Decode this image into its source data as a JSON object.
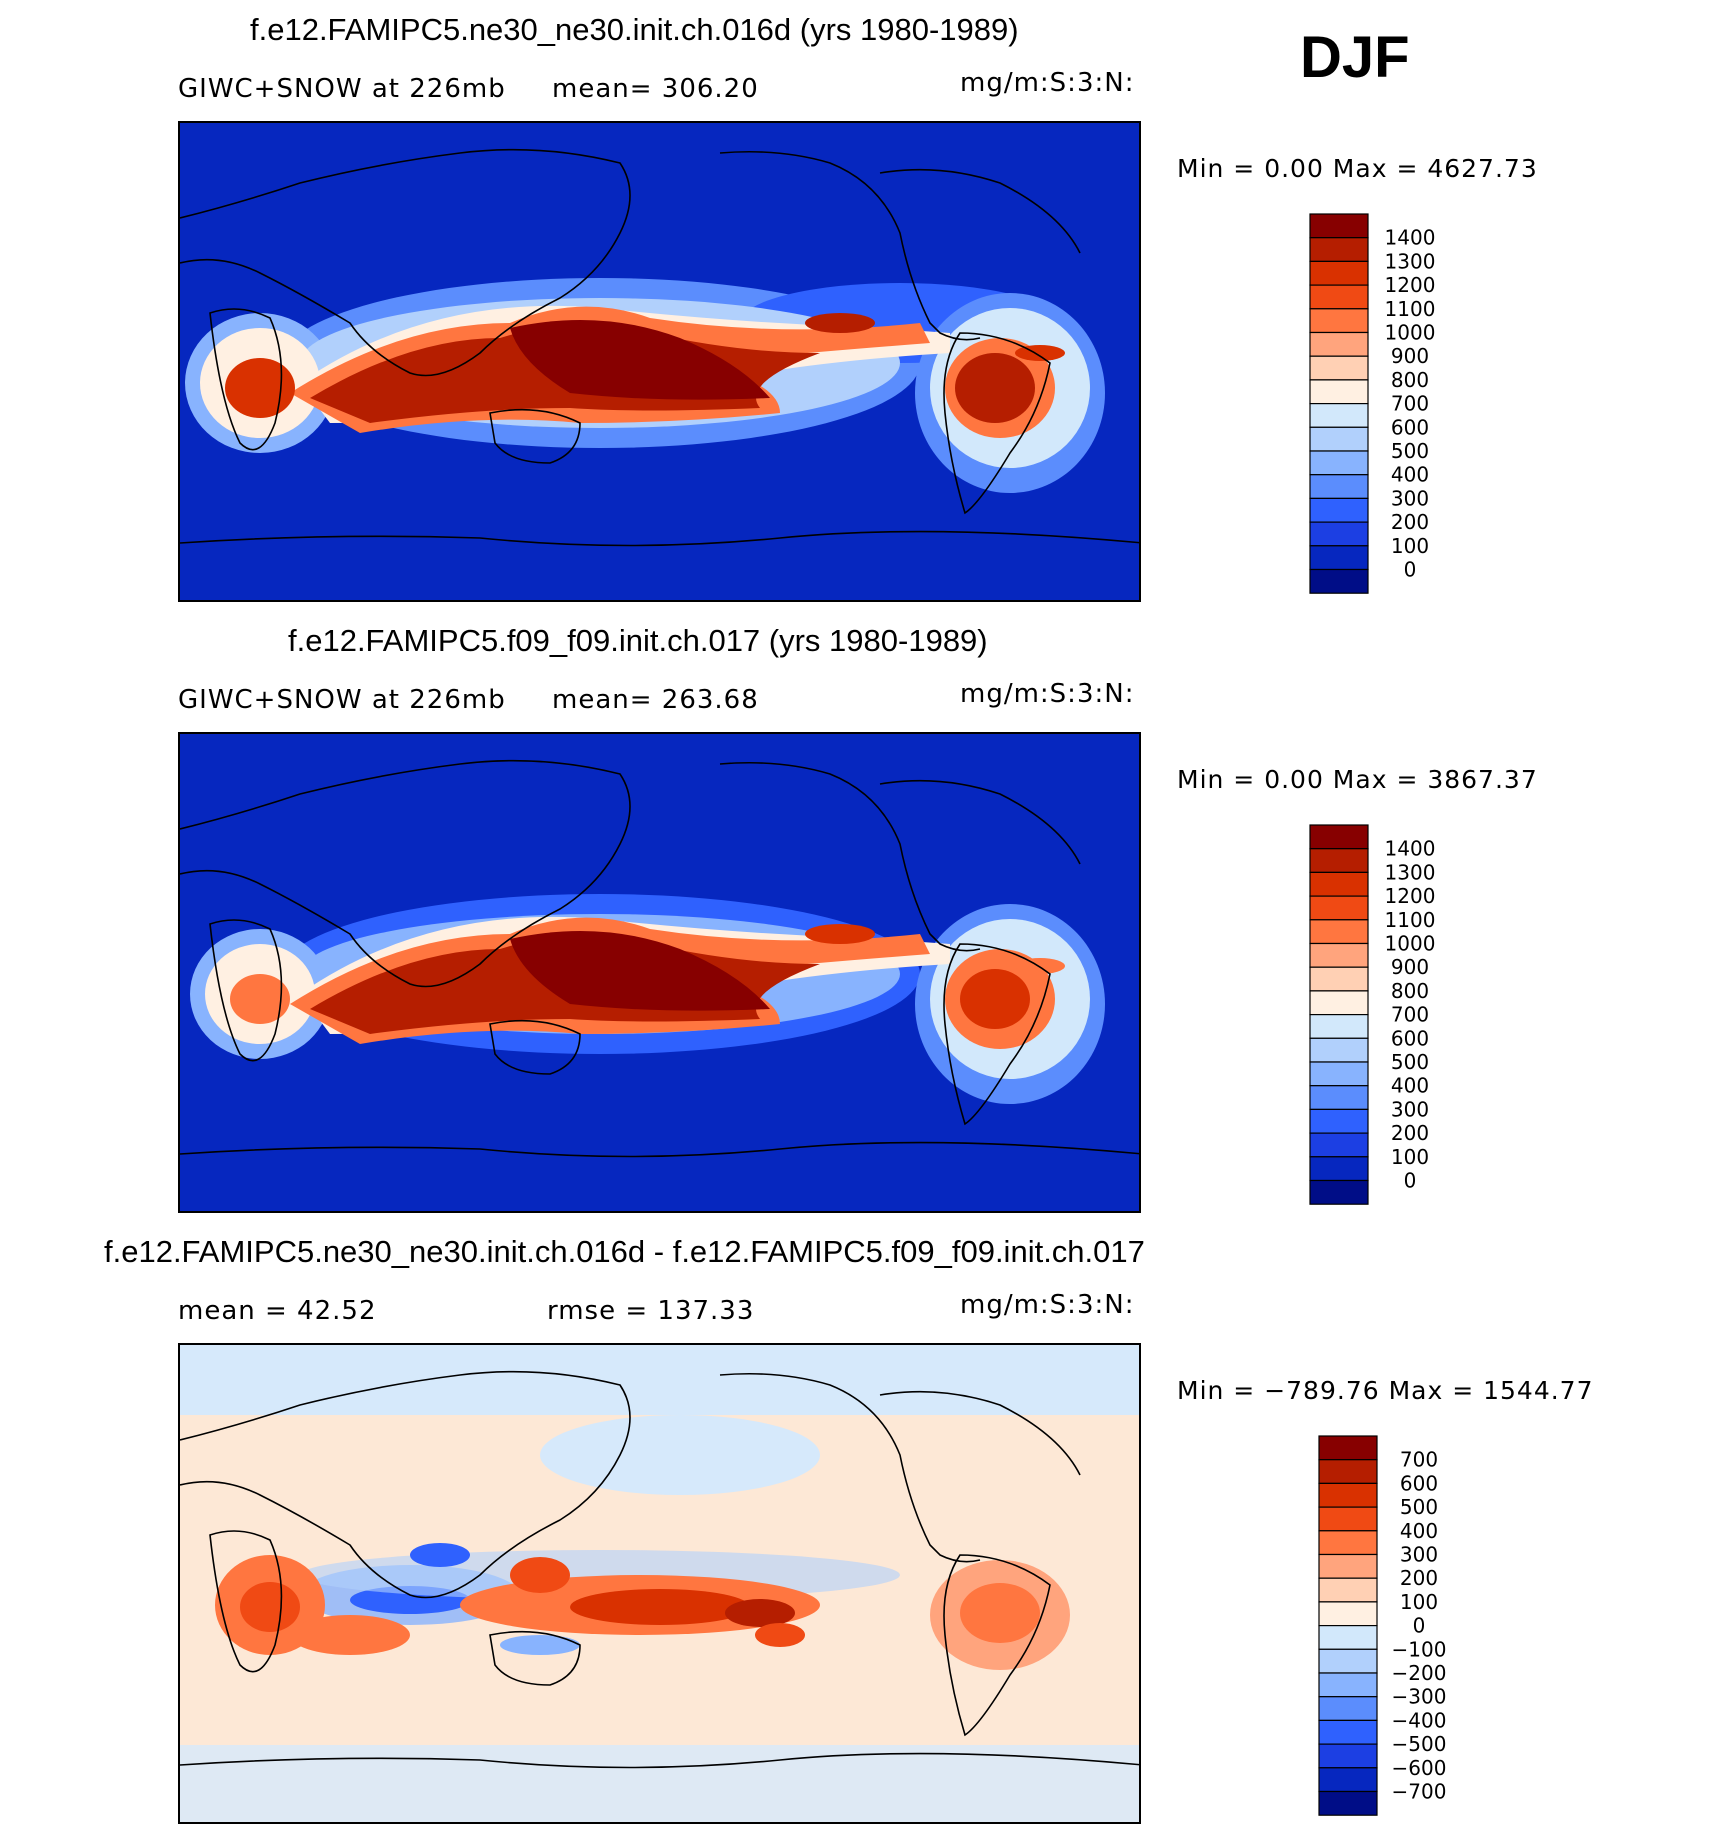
{
  "season": "DJF",
  "panels": [
    {
      "title": "f.e12.FAMIPC5.ne30_ne30.init.ch.016d (yrs 1980-1989)",
      "left_label": "GIWC+SNOW at 226mb",
      "mid_label": "mean= 306.20",
      "units": "mg/m:S:3:N:",
      "minmax": "Min =    0.00 Max = 4627.73",
      "field": {
        "type": "absolute",
        "mean": 306.2,
        "min": 0.0,
        "max": 4627.73
      },
      "legend": {
        "labels": [
          "1400",
          "1300",
          "1200",
          "1100",
          "1000",
          "900",
          "800",
          "700",
          "600",
          "500",
          "400",
          "300",
          "200",
          "100",
          "0"
        ],
        "colors": [
          "#870000",
          "#b51e00",
          "#d93100",
          "#f04a14",
          "#ff7640",
          "#ffa47d",
          "#ffd0b4",
          "#fff0e2",
          "#d2e8fb",
          "#b1d0fc",
          "#88b3fe",
          "#5b8dfd",
          "#2f61fe",
          "#1c3fe3",
          "#0627bf",
          "#000d87"
        ]
      }
    },
    {
      "title": "f.e12.FAMIPC5.f09_f09.init.ch.017 (yrs 1980-1989)",
      "left_label": "GIWC+SNOW at 226mb",
      "mid_label": "mean= 263.68",
      "units": "mg/m:S:3:N:",
      "minmax": "Min =    0.00 Max = 3867.37",
      "field": {
        "type": "absolute",
        "mean": 263.68,
        "min": 0.0,
        "max": 3867.37
      },
      "legend": {
        "labels": [
          "1400",
          "1300",
          "1200",
          "1100",
          "1000",
          "900",
          "800",
          "700",
          "600",
          "500",
          "400",
          "300",
          "200",
          "100",
          "0"
        ],
        "colors": [
          "#870000",
          "#b51e00",
          "#d93100",
          "#f04a14",
          "#ff7640",
          "#ffa47d",
          "#ffd0b4",
          "#fff0e2",
          "#d2e8fb",
          "#b1d0fc",
          "#88b3fe",
          "#5b8dfd",
          "#2f61fe",
          "#1c3fe3",
          "#0627bf",
          "#000d87"
        ]
      }
    },
    {
      "title": "f.e12.FAMIPC5.ne30_ne30.init.ch.016d - f.e12.FAMIPC5.f09_f09.init.ch.017",
      "left_label": "mean =   42.52",
      "mid_label": "rmse  =  137.33",
      "units": "mg/m:S:3:N:",
      "minmax": "Min = −789.76 Max =  1544.77",
      "field": {
        "type": "difference",
        "mean": 42.52,
        "rmse": 137.33,
        "min": -789.76,
        "max": 1544.77
      },
      "legend": {
        "labels": [
          "700",
          "600",
          "500",
          "400",
          "300",
          "200",
          "100",
          "0",
          "−100",
          "−200",
          "−300",
          "−400",
          "−500",
          "−600",
          "−700"
        ],
        "colors": [
          "#870000",
          "#b51e00",
          "#d93100",
          "#f04a14",
          "#ff7640",
          "#ffa47d",
          "#ffd0b4",
          "#fff0e2",
          "#d2e8fb",
          "#b1d0fc",
          "#88b3fe",
          "#5b8dfd",
          "#2f61fe",
          "#1c3fe3",
          "#0627bf",
          "#000d87"
        ]
      }
    }
  ],
  "map_colors": {
    "ocean_low": "#0627bf",
    "diff_pos": "#fde8d6",
    "diff_neg": "#d6e9fb",
    "coastline": "#000000"
  }
}
